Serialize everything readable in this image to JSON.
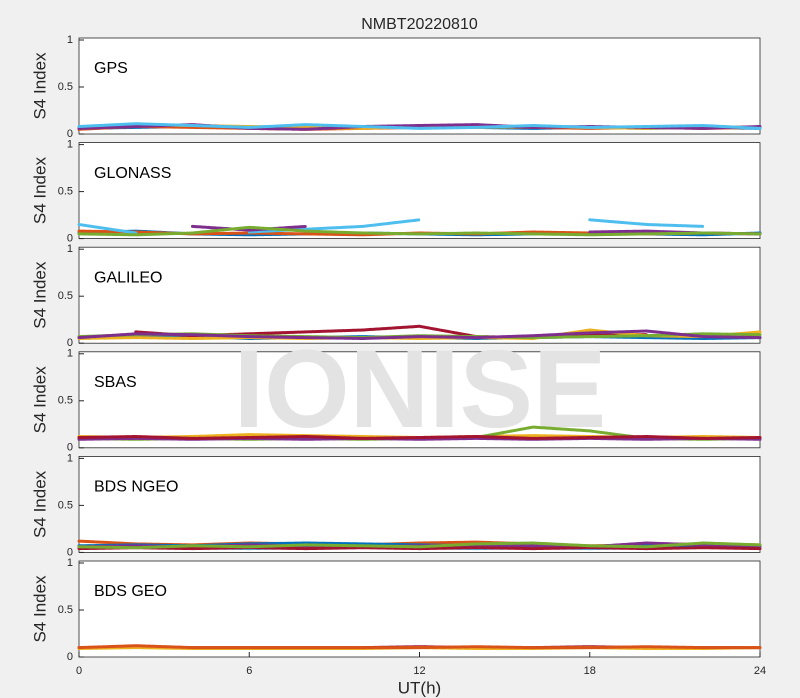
{
  "watermark": "IONISE",
  "chart_data": [
    {
      "type": "line",
      "title": "NMBT20220810",
      "label": "GPS",
      "ylabel": "S4 Index",
      "xlim": [
        0,
        24
      ],
      "ylim": [
        0,
        1
      ],
      "yticks": [
        0,
        0.5,
        1
      ],
      "x": [
        0,
        2,
        4,
        6,
        8,
        10,
        12,
        14,
        16,
        18,
        20,
        22,
        24
      ],
      "series": [
        {
          "color": "#0072bd",
          "values": [
            0.06,
            0.07,
            0.08,
            0.07,
            0.06,
            0.07,
            0.08,
            0.07,
            0.06,
            0.07,
            0.06,
            0.07,
            0.06
          ]
        },
        {
          "color": "#d95319",
          "values": [
            0.05,
            0.08,
            0.07,
            0.06,
            0.05,
            0.06,
            0.07,
            0.08,
            0.07,
            0.06,
            0.07,
            0.06,
            0.07
          ]
        },
        {
          "color": "#edb120",
          "values": [
            0.07,
            0.1,
            0.09,
            0.08,
            0.07,
            0.06,
            0.08,
            0.07,
            0.08,
            0.07,
            0.06,
            0.08,
            0.07
          ]
        },
        {
          "color": "#7e2f8e",
          "values": [
            0.06,
            0.08,
            0.1,
            0.06,
            0.05,
            0.08,
            0.09,
            0.1,
            0.07,
            0.08,
            0.07,
            0.06,
            0.08
          ]
        },
        {
          "color": "#4dbeee",
          "values": [
            0.08,
            0.11,
            0.09,
            0.07,
            0.1,
            0.08,
            0.06,
            0.07,
            0.09,
            0.07,
            0.08,
            0.09,
            0.06
          ]
        }
      ]
    },
    {
      "type": "line",
      "label": "GLONASS",
      "ylabel": "S4 Index",
      "xlim": [
        0,
        24
      ],
      "ylim": [
        0,
        1
      ],
      "yticks": [
        0,
        0.5,
        1
      ],
      "x": [
        0,
        2,
        4,
        6,
        8,
        10,
        12,
        14,
        16,
        18,
        20,
        22,
        24
      ],
      "series": [
        {
          "color": "#0072bd",
          "values": [
            0.06,
            0.08,
            0.05,
            0.04,
            0.05,
            0.06,
            0.05,
            0.04,
            0.05,
            0.06,
            0.05,
            0.04,
            0.06
          ]
        },
        {
          "color": "#d95319",
          "values": [
            0.08,
            0.07,
            0.05,
            0.06,
            0.05,
            0.04,
            0.06,
            0.05,
            0.07,
            0.06,
            0.05,
            0.06,
            0.05
          ]
        },
        {
          "color": "#4dbeee",
          "values": [
            0.15,
            0.06,
            null,
            0.07,
            0.1,
            0.13,
            0.2,
            null,
            null,
            0.2,
            0.15,
            0.13,
            null
          ]
        },
        {
          "color": "#7e2f8e",
          "values": [
            null,
            null,
            0.13,
            0.09,
            0.13,
            null,
            null,
            null,
            null,
            0.07,
            0.08,
            0.06,
            0.05
          ]
        },
        {
          "color": "#77ac30",
          "values": [
            0.05,
            0.04,
            0.06,
            0.12,
            0.08,
            0.06,
            0.05,
            0.06,
            0.05,
            0.04,
            0.05,
            0.06,
            0.05
          ]
        }
      ]
    },
    {
      "type": "line",
      "label": "GALILEO",
      "ylabel": "S4 Index",
      "xlim": [
        0,
        24
      ],
      "ylim": [
        0,
        1
      ],
      "yticks": [
        0,
        0.5,
        1
      ],
      "x": [
        0,
        2,
        4,
        6,
        8,
        10,
        12,
        14,
        16,
        18,
        20,
        22,
        24
      ],
      "series": [
        {
          "color": "#0072bd",
          "values": [
            0.06,
            0.08,
            0.07,
            0.05,
            0.06,
            0.07,
            0.06,
            0.05,
            0.06,
            0.07,
            0.06,
            0.05,
            0.06
          ]
        },
        {
          "color": "#a2142f",
          "values": [
            null,
            0.12,
            0.08,
            0.1,
            0.12,
            0.14,
            0.18,
            0.07,
            0.06,
            0.1,
            0.09,
            null,
            null
          ]
        },
        {
          "color": "#edb120",
          "values": [
            0.05,
            0.06,
            0.05,
            0.06,
            0.05,
            0.06,
            0.05,
            0.06,
            0.05,
            0.14,
            0.08,
            0.07,
            0.12
          ]
        },
        {
          "color": "#77ac30",
          "values": [
            0.07,
            0.09,
            0.1,
            0.08,
            0.07,
            0.06,
            0.08,
            0.07,
            0.06,
            0.07,
            0.08,
            0.1,
            0.09
          ]
        },
        {
          "color": "#7e2f8e",
          "values": [
            0.06,
            0.1,
            0.09,
            0.07,
            0.06,
            0.05,
            0.07,
            0.06,
            0.08,
            0.11,
            0.13,
            0.07,
            0.06
          ]
        }
      ]
    },
    {
      "type": "line",
      "label": "SBAS",
      "ylabel": "S4 Index",
      "xlim": [
        0,
        24
      ],
      "ylim": [
        0,
        1
      ],
      "yticks": [
        0,
        0.5,
        1
      ],
      "x": [
        0,
        2,
        4,
        6,
        8,
        10,
        12,
        14,
        16,
        18,
        20,
        22,
        24
      ],
      "series": [
        {
          "color": "#edb120",
          "values": [
            0.12,
            0.11,
            0.12,
            0.14,
            0.13,
            0.12,
            0.11,
            0.12,
            0.13,
            0.12,
            0.11,
            0.12,
            0.11
          ]
        },
        {
          "color": "#77ac30",
          "values": [
            0.1,
            0.09,
            0.1,
            0.09,
            0.1,
            0.09,
            0.1,
            0.11,
            0.22,
            0.18,
            0.1,
            0.09,
            0.1
          ]
        },
        {
          "color": "#7e2f8e",
          "values": [
            0.09,
            0.1,
            0.09,
            0.1,
            0.09,
            0.1,
            0.09,
            0.1,
            0.09,
            0.1,
            0.09,
            0.1,
            0.09
          ]
        },
        {
          "color": "#a2142f",
          "values": [
            0.11,
            0.12,
            0.1,
            0.11,
            0.12,
            0.1,
            0.11,
            0.12,
            0.1,
            0.11,
            0.12,
            0.1,
            0.11
          ]
        }
      ]
    },
    {
      "type": "line",
      "label": "BDS NGEO",
      "ylabel": "S4 Index",
      "xlim": [
        0,
        24
      ],
      "ylim": [
        0,
        1
      ],
      "yticks": [
        0,
        0.5,
        1
      ],
      "x": [
        0,
        2,
        4,
        6,
        8,
        10,
        12,
        14,
        16,
        18,
        20,
        22,
        24
      ],
      "series": [
        {
          "color": "#4dbeee",
          "values": [
            0.05,
            0.06,
            0.05,
            0.04,
            0.05,
            0.06,
            0.05,
            0.04,
            0.05,
            0.04,
            0.05,
            0.06,
            0.05
          ]
        },
        {
          "color": "#d95319",
          "values": [
            0.12,
            0.09,
            0.08,
            0.1,
            0.09,
            0.08,
            0.1,
            0.11,
            0.09,
            0.07,
            0.08,
            0.09,
            0.08
          ]
        },
        {
          "color": "#0072bd",
          "values": [
            0.07,
            0.08,
            0.07,
            0.09,
            0.1,
            0.09,
            0.08,
            0.07,
            0.08,
            0.06,
            0.07,
            0.08,
            0.07
          ]
        },
        {
          "color": "#7e2f8e",
          "values": [
            0.06,
            0.07,
            0.06,
            0.08,
            0.07,
            0.06,
            0.07,
            0.08,
            0.07,
            0.06,
            0.1,
            0.08,
            0.07
          ]
        },
        {
          "color": "#a2142f",
          "values": [
            0.04,
            0.05,
            0.04,
            0.05,
            0.04,
            0.05,
            0.04,
            0.05,
            0.04,
            0.05,
            0.04,
            0.05,
            0.04
          ]
        },
        {
          "color": "#77ac30",
          "values": [
            0.06,
            0.05,
            0.07,
            0.06,
            0.08,
            0.07,
            0.06,
            0.09,
            0.1,
            0.07,
            0.06,
            0.1,
            0.08
          ]
        }
      ]
    },
    {
      "type": "line",
      "label": "BDS GEO",
      "ylabel": "S4 Index",
      "xlabel": "UT(h)",
      "xlim": [
        0,
        24
      ],
      "ylim": [
        0,
        1
      ],
      "yticks": [
        0,
        0.5,
        1
      ],
      "xticks": [
        0,
        6,
        12,
        18,
        24
      ],
      "x": [
        0,
        2,
        4,
        6,
        8,
        10,
        12,
        14,
        16,
        18,
        20,
        22,
        24
      ],
      "series": [
        {
          "color": "#a2142f",
          "values": [
            0.1,
            0.11,
            0.1,
            0.1,
            0.1,
            0.1,
            0.11,
            0.1,
            0.1,
            0.11,
            0.1,
            0.1,
            0.1
          ]
        },
        {
          "color": "#edb120",
          "values": [
            0.09,
            0.1,
            0.09,
            0.09,
            0.09,
            0.09,
            0.1,
            0.09,
            0.09,
            0.1,
            0.09,
            0.09,
            0.1
          ]
        },
        {
          "color": "#d95319",
          "values": [
            0.1,
            0.12,
            0.1,
            0.1,
            0.1,
            0.1,
            0.1,
            0.11,
            0.1,
            0.1,
            0.11,
            0.1,
            0.1
          ]
        }
      ]
    }
  ]
}
